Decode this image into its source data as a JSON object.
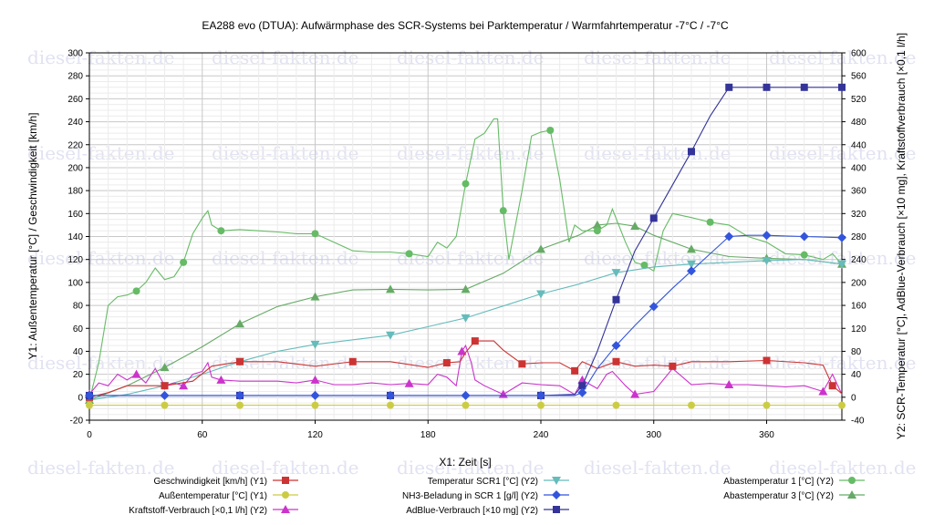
{
  "chart_data": {
    "type": "line",
    "title": "EA288 evo (DTUA): Aufwärmphase des SCR-Systems bei Parktemperatur / Warmfahrtemperatur -7°C / -7°C",
    "xlabel": "X1: Zeit [s]",
    "ylabel": "Y1: Außentemperatur [°C] / Geschwindigkeit [km/h]",
    "y2label": "Y2: SCR-Temperatur [°C], AdBlue-Verbrauch [×10 mg], Kraftstoffverbrauch [×0,1 l/h]",
    "watermark": "diesel-fakten.de",
    "xlim": [
      0,
      400
    ],
    "ylim": [
      -20,
      300
    ],
    "y2lim": [
      -40,
      600
    ],
    "xticks": [
      0,
      60,
      120,
      180,
      240,
      300,
      360
    ],
    "yticks": [
      -20,
      0,
      20,
      40,
      60,
      80,
      100,
      120,
      140,
      160,
      180,
      200,
      220,
      240,
      260,
      280,
      300
    ],
    "y2ticks": [
      -40,
      0,
      40,
      80,
      120,
      160,
      200,
      240,
      280,
      320,
      360,
      400,
      440,
      480,
      520,
      560,
      600
    ],
    "grid": true,
    "legend_position": "bottom",
    "series": [
      {
        "name": "Geschwindigkeit [km/h] (Y1)",
        "axis": "y1",
        "color": "#cc3333",
        "marker": "square",
        "x": [
          0,
          10,
          20,
          40,
          55,
          65,
          80,
          100,
          120,
          140,
          160,
          180,
          190,
          197,
          200,
          205,
          215,
          220,
          230,
          240,
          250,
          258,
          262,
          270,
          280,
          290,
          300,
          310,
          320,
          340,
          360,
          380,
          390,
          395,
          400
        ],
        "y": [
          0,
          4,
          10,
          10,
          14,
          27,
          31,
          31,
          27,
          31,
          31,
          26,
          30,
          31,
          39,
          49,
          49,
          41,
          29,
          30,
          30,
          23,
          31,
          25,
          31,
          27,
          28,
          27,
          31,
          31,
          32,
          30,
          28,
          10,
          3
        ]
      },
      {
        "name": "Außentemperatur [°C] (Y1)",
        "axis": "y1",
        "color": "#cccc44",
        "marker": "circle",
        "x": [
          0,
          20,
          40,
          60,
          80,
          100,
          120,
          140,
          160,
          180,
          200,
          220,
          240,
          260,
          280,
          300,
          320,
          340,
          360,
          380,
          400
        ],
        "y": [
          -7,
          -7,
          -7,
          -7,
          -7,
          -7,
          -7,
          -7,
          -7,
          -7,
          -7,
          -7,
          -7,
          -7,
          -7,
          -7,
          -7,
          -7,
          -7,
          -7,
          -7
        ]
      },
      {
        "name": "Kraftstoff-Verbrauch [×0,1 l/h] (Y2)",
        "axis": "y2",
        "color": "#cc33cc",
        "marker": "triangle",
        "x": [
          0,
          5,
          10,
          15,
          20,
          25,
          30,
          35,
          40,
          45,
          50,
          55,
          60,
          63,
          65,
          70,
          80,
          90,
          100,
          110,
          120,
          130,
          140,
          150,
          160,
          170,
          180,
          185,
          190,
          195,
          198,
          200,
          203,
          205,
          210,
          220,
          230,
          240,
          250,
          258,
          262,
          270,
          275,
          278,
          285,
          290,
          300,
          310,
          320,
          330,
          340,
          350,
          360,
          370,
          380,
          390,
          395,
          400
        ],
        "y": [
          5,
          25,
          20,
          40,
          30,
          40,
          25,
          50,
          20,
          25,
          20,
          40,
          45,
          60,
          35,
          30,
          28,
          28,
          28,
          25,
          30,
          22,
          22,
          25,
          22,
          24,
          22,
          40,
          35,
          20,
          80,
          90,
          60,
          30,
          20,
          5,
          25,
          22,
          20,
          5,
          30,
          15,
          40,
          45,
          20,
          5,
          10,
          50,
          22,
          24,
          22,
          22,
          20,
          18,
          20,
          10,
          40,
          5
        ]
      },
      {
        "name": "Temperatur SCR1 [°C] (Y2)",
        "axis": "y2",
        "color": "#66bbbb",
        "marker": "triangle-down",
        "x": [
          0,
          20,
          40,
          60,
          80,
          100,
          120,
          140,
          160,
          180,
          200,
          220,
          240,
          260,
          280,
          300,
          320,
          340,
          360,
          380,
          400
        ],
        "y": [
          -5,
          5,
          20,
          40,
          62,
          80,
          92,
          100,
          108,
          123,
          138,
          159,
          180,
          197,
          217,
          227,
          232,
          235,
          238,
          240,
          232
        ]
      },
      {
        "name": "NH3-Beladung in SCR 1 [g/l] (Y2)",
        "axis": "y2",
        "color": "#3355dd",
        "marker": "diamond",
        "x": [
          0,
          20,
          40,
          60,
          80,
          100,
          120,
          140,
          160,
          180,
          200,
          220,
          240,
          258,
          262,
          270,
          280,
          290,
          300,
          310,
          320,
          330,
          340,
          350,
          360,
          370,
          380,
          390,
          400
        ],
        "y": [
          3,
          3,
          3,
          3,
          3,
          3,
          3,
          3,
          3,
          3,
          3,
          3,
          3,
          3,
          8,
          50,
          90,
          125,
          158,
          190,
          220,
          250,
          280,
          282,
          282,
          281,
          280,
          279,
          278
        ]
      },
      {
        "name": "AdBlue-Verbrauch [×10 mg] (Y2)",
        "axis": "y2",
        "color": "#333399",
        "marker": "square",
        "x": [
          0,
          40,
          80,
          120,
          160,
          200,
          240,
          258,
          262,
          270,
          280,
          290,
          300,
          310,
          320,
          330,
          340,
          350,
          360,
          370,
          380,
          390,
          400
        ],
        "y": [
          3,
          3,
          3,
          3,
          3,
          3,
          3,
          5,
          20,
          80,
          170,
          255,
          312,
          370,
          428,
          490,
          540,
          540,
          540,
          540,
          540,
          540,
          540
        ]
      },
      {
        "name": "Abastemperatur 1 [°C] (Y2)",
        "axis": "y2",
        "color": "#66bb66",
        "marker": "circle",
        "x": [
          0,
          5,
          10,
          15,
          20,
          25,
          30,
          35,
          40,
          45,
          50,
          55,
          60,
          63,
          65,
          70,
          80,
          90,
          100,
          110,
          120,
          130,
          140,
          150,
          160,
          170,
          180,
          185,
          190,
          195,
          200,
          205,
          210,
          215,
          217,
          220,
          223,
          230,
          235,
          240,
          245,
          250,
          255,
          258,
          262,
          270,
          275,
          278,
          285,
          290,
          295,
          300,
          305,
          310,
          320,
          330,
          340,
          350,
          360,
          370,
          380,
          390,
          395,
          400
        ],
        "y": [
          -5,
          60,
          160,
          175,
          178,
          185,
          200,
          225,
          205,
          210,
          235,
          285,
          312,
          325,
          300,
          290,
          292,
          290,
          288,
          285,
          285,
          270,
          255,
          253,
          253,
          250,
          245,
          270,
          260,
          280,
          372,
          450,
          460,
          485,
          485,
          325,
          240,
          360,
          455,
          462,
          465,
          380,
          270,
          300,
          290,
          290,
          300,
          328,
          270,
          235,
          230,
          220,
          290,
          320,
          313,
          305,
          300,
          280,
          270,
          250,
          248,
          240,
          250,
          232
        ]
      },
      {
        "name": "Abastemperatur 3 [°C] (Y2)",
        "axis": "y2",
        "color": "#66aa66",
        "marker": "triangle",
        "x": [
          0,
          20,
          40,
          60,
          80,
          100,
          120,
          140,
          160,
          180,
          200,
          220,
          240,
          260,
          270,
          280,
          290,
          300,
          320,
          340,
          360,
          380,
          400
        ],
        "y": [
          -5,
          20,
          52,
          88,
          128,
          158,
          175,
          187,
          188,
          187,
          188,
          216,
          258,
          282,
          300,
          303,
          298,
          282,
          258,
          245,
          242,
          240,
          232
        ]
      }
    ]
  }
}
